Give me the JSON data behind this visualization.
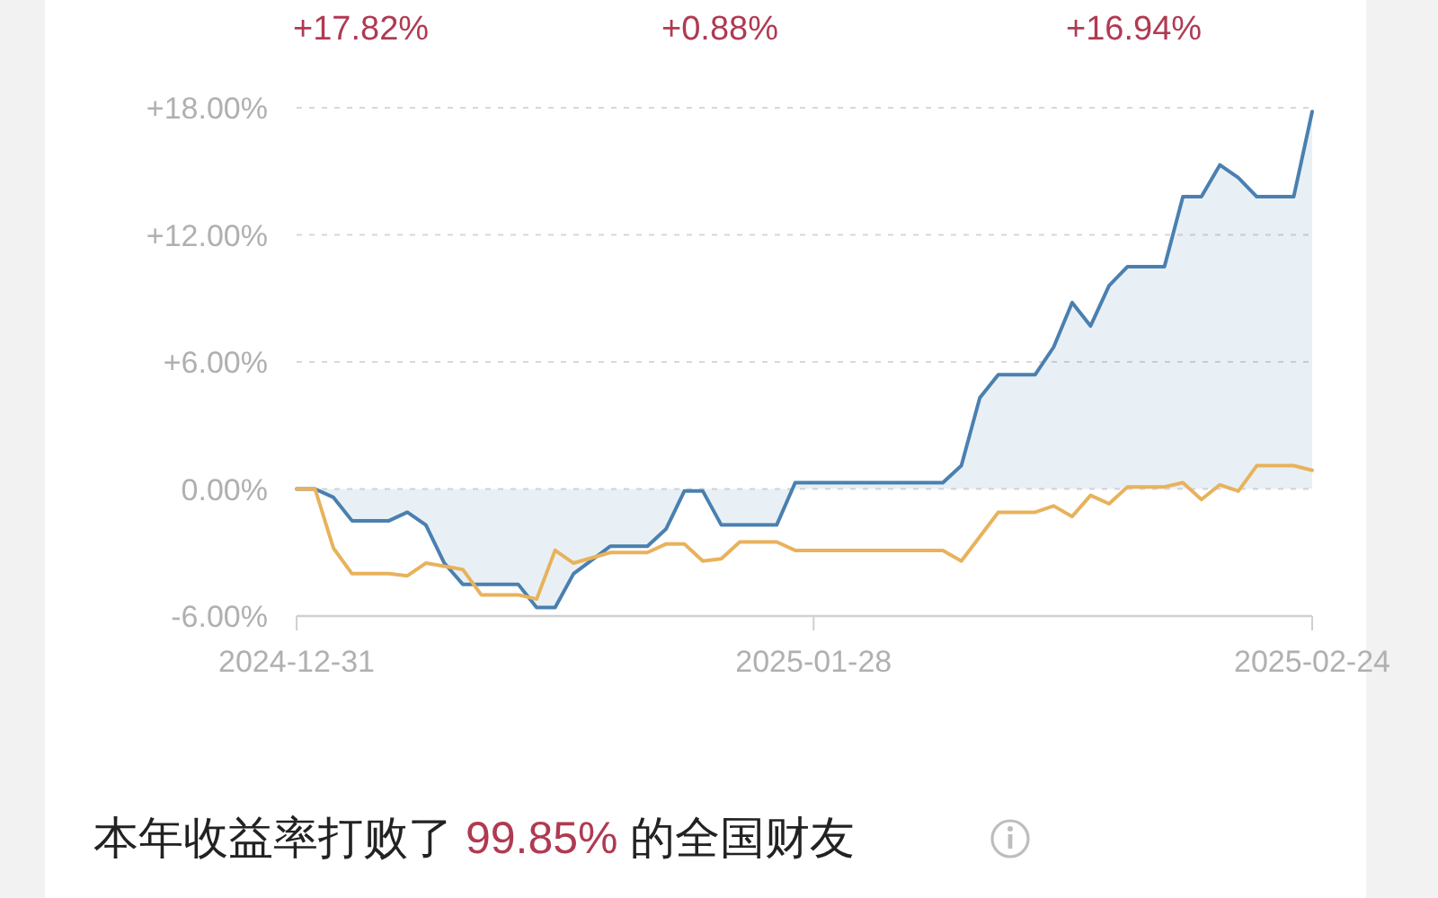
{
  "chart_data": {
    "type": "line",
    "annotations": [
      "+17.82%",
      "+0.88%",
      "+16.94%",
      "本年收益率打败了 99.85% 的全国财友"
    ],
    "xlim": [
      "2024-12-31",
      "2025-02-24"
    ],
    "xticks": [
      {
        "value": "2024-12-31",
        "label": "2024-12-31"
      },
      {
        "value": "2025-01-28",
        "label": "2025-01-28"
      },
      {
        "value": "2025-02-24",
        "label": "2025-02-24"
      }
    ],
    "ylim": [
      -6,
      18
    ],
    "yticks": [
      {
        "value": -6,
        "label": "-6.00%"
      },
      {
        "value": 0,
        "label": "0.00%"
      },
      {
        "value": 6,
        "label": "+6.00%"
      },
      {
        "value": 12,
        "label": "+12.00%"
      },
      {
        "value": 18,
        "label": "+18.00%"
      }
    ],
    "grid": "y",
    "marker": "none",
    "line_style": "solid",
    "series": [
      {
        "type": "area",
        "color": "#4a80b0",
        "x": [
          "2024-12-31",
          "2025-01-01",
          "2025-01-02",
          "2025-01-03",
          "2025-01-05",
          "2025-01-06",
          "2025-01-07",
          "2025-01-08",
          "2025-01-09",
          "2025-01-12",
          "2025-01-13",
          "2025-01-14",
          "2025-01-15",
          "2025-01-17",
          "2025-01-19",
          "2025-01-20",
          "2025-01-21",
          "2025-01-22",
          "2025-01-23",
          "2025-01-26",
          "2025-01-27",
          "2025-02-04",
          "2025-02-05",
          "2025-02-06",
          "2025-02-07",
          "2025-02-09",
          "2025-02-10",
          "2025-02-11",
          "2025-02-12",
          "2025-02-13",
          "2025-02-14",
          "2025-02-16",
          "2025-02-17",
          "2025-02-18",
          "2025-02-19",
          "2025-02-20",
          "2025-02-21",
          "2025-02-23",
          "2025-02-24"
        ],
        "values": [
          0,
          0,
          -0.4,
          -1.5,
          -1.5,
          -1.1,
          -1.7,
          -3.5,
          -4.5,
          -4.5,
          -5.6,
          -5.6,
          -4.0,
          -2.7,
          -2.7,
          -1.9,
          -0.1,
          -0.1,
          -1.7,
          -1.7,
          0.3,
          0.3,
          1.1,
          4.3,
          5.4,
          5.4,
          6.7,
          8.8,
          7.7,
          9.6,
          10.5,
          10.5,
          13.8,
          13.8,
          15.3,
          14.7,
          13.8,
          13.8,
          17.82
        ]
      },
      {
        "color": "#e8b25c",
        "x": [
          "2024-12-31",
          "2025-01-01",
          "2025-01-02",
          "2025-01-03",
          "2025-01-05",
          "2025-01-06",
          "2025-01-07",
          "2025-01-09",
          "2025-01-10",
          "2025-01-12",
          "2025-01-13",
          "2025-01-14",
          "2025-01-15",
          "2025-01-17",
          "2025-01-19",
          "2025-01-20",
          "2025-01-21",
          "2025-01-22",
          "2025-01-23",
          "2025-01-24",
          "2025-01-26",
          "2025-01-27",
          "2025-02-04",
          "2025-02-05",
          "2025-02-07",
          "2025-02-09",
          "2025-02-10",
          "2025-02-11",
          "2025-02-12",
          "2025-02-13",
          "2025-02-14",
          "2025-02-16",
          "2025-02-17",
          "2025-02-18",
          "2025-02-19",
          "2025-02-20",
          "2025-02-21",
          "2025-02-23",
          "2025-02-24"
        ],
        "values": [
          0,
          0,
          -2.8,
          -4.0,
          -4.0,
          -4.1,
          -3.5,
          -3.8,
          -5.0,
          -5.0,
          -5.2,
          -2.9,
          -3.5,
          -3.0,
          -3.0,
          -2.6,
          -2.6,
          -3.4,
          -3.3,
          -2.5,
          -2.5,
          -2.9,
          -2.9,
          -3.4,
          -1.1,
          -1.1,
          -0.8,
          -1.3,
          -0.3,
          -0.7,
          0.1,
          0.1,
          0.3,
          -0.5,
          0.2,
          -0.1,
          1.1,
          1.1,
          0.88
        ]
      }
    ]
  }
}
